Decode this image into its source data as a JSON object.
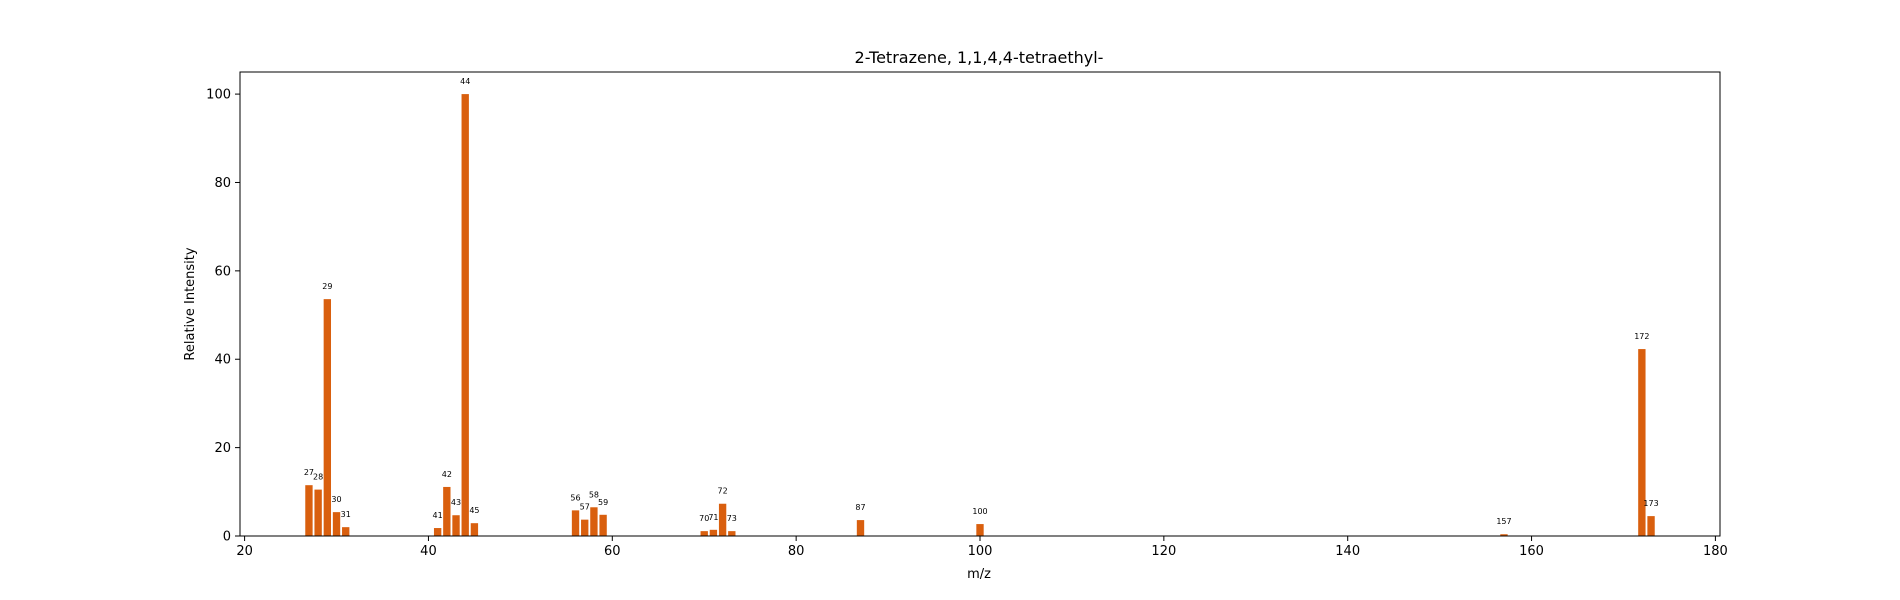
{
  "chart_data": {
    "type": "bar",
    "title": "2-Tetrazene, 1,1,4,4-tetraethyl-",
    "xlabel": "m/z",
    "ylabel": "Relative Intensity",
    "xlim": [
      19.5,
      180.5
    ],
    "ylim": [
      0,
      105
    ],
    "xticks": [
      20,
      40,
      60,
      80,
      100,
      120,
      140,
      160,
      180
    ],
    "yticks": [
      0,
      20,
      40,
      60,
      80,
      100
    ],
    "grid": false,
    "bar_color": "#d95f0e",
    "peaks": [
      {
        "mz": 27,
        "intensity": 11.5,
        "label": "27"
      },
      {
        "mz": 28,
        "intensity": 10.5,
        "label": "28"
      },
      {
        "mz": 29,
        "intensity": 53.6,
        "label": "29"
      },
      {
        "mz": 30,
        "intensity": 5.4,
        "label": "30"
      },
      {
        "mz": 31,
        "intensity": 2.0,
        "label": "31"
      },
      {
        "mz": 41,
        "intensity": 1.8,
        "label": "41"
      },
      {
        "mz": 42,
        "intensity": 11.1,
        "label": "42"
      },
      {
        "mz": 43,
        "intensity": 4.7,
        "label": "43"
      },
      {
        "mz": 44,
        "intensity": 100,
        "label": "44"
      },
      {
        "mz": 45,
        "intensity": 2.9,
        "label": "45"
      },
      {
        "mz": 56,
        "intensity": 5.8,
        "label": "56"
      },
      {
        "mz": 57,
        "intensity": 3.7,
        "label": "57"
      },
      {
        "mz": 58,
        "intensity": 6.5,
        "label": "58"
      },
      {
        "mz": 59,
        "intensity": 4.8,
        "label": "59"
      },
      {
        "mz": 70,
        "intensity": 1.1,
        "label": "70"
      },
      {
        "mz": 71,
        "intensity": 1.4,
        "label": "71"
      },
      {
        "mz": 72,
        "intensity": 7.3,
        "label": "72"
      },
      {
        "mz": 73,
        "intensity": 1.1,
        "label": "73"
      },
      {
        "mz": 87,
        "intensity": 3.6,
        "label": "87"
      },
      {
        "mz": 100,
        "intensity": 2.7,
        "label": "100"
      },
      {
        "mz": 157,
        "intensity": 0.4,
        "label": "157"
      },
      {
        "mz": 172,
        "intensity": 42.3,
        "label": "172"
      },
      {
        "mz": 173,
        "intensity": 4.5,
        "label": "173"
      }
    ]
  }
}
